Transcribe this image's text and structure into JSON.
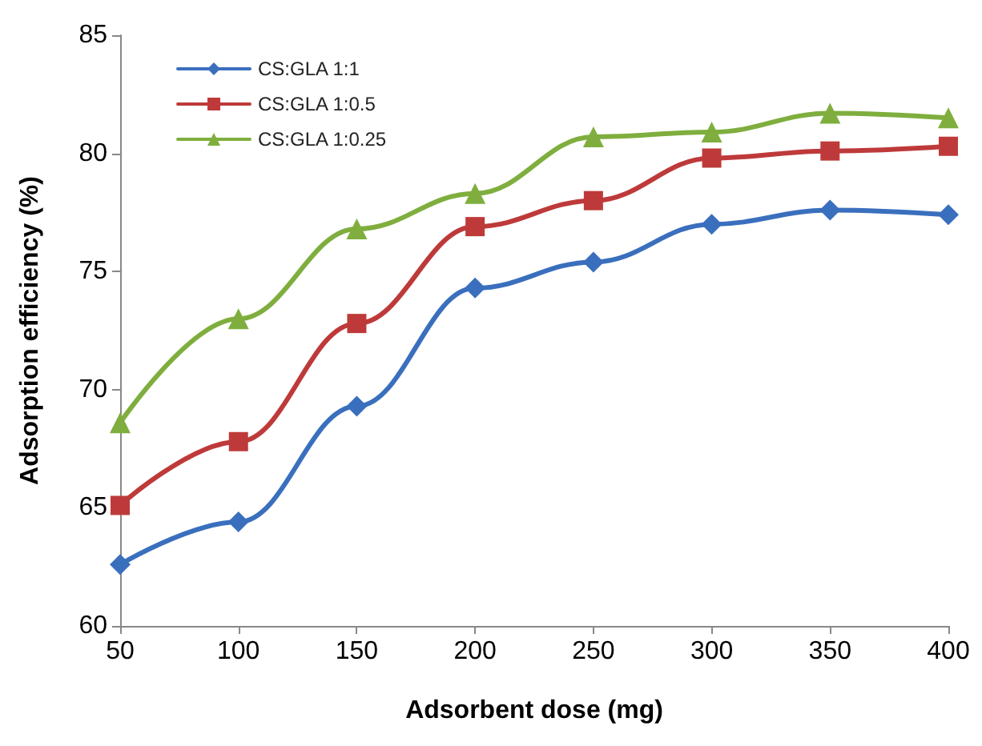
{
  "chart_data": {
    "type": "line",
    "xlabel": "Adsorbent dose (mg)",
    "ylabel": "Adsorption efficiency (%)",
    "x": [
      50,
      100,
      150,
      200,
      250,
      300,
      350,
      400
    ],
    "xlim": [
      50,
      400
    ],
    "xticks": [
      50,
      100,
      150,
      200,
      250,
      300,
      350,
      400
    ],
    "ylim": [
      60,
      85
    ],
    "yticks": [
      60,
      65,
      70,
      75,
      80,
      85
    ],
    "grid": false,
    "legend": "top left",
    "line_style": "solid",
    "series": [
      {
        "name": "CS:GLA 1:1",
        "color": "#3a6fbd",
        "marker": "diamond",
        "values": [
          62.6,
          64.4,
          69.3,
          74.3,
          75.4,
          77.0,
          77.6,
          77.4
        ]
      },
      {
        "name": "CS:GLA 1:0.5",
        "color": "#be3a3a",
        "marker": "square",
        "values": [
          65.1,
          67.8,
          72.8,
          76.9,
          78.0,
          79.8,
          80.1,
          80.3
        ]
      },
      {
        "name": "CS:GLA 1:0.25",
        "color": "#7fae3e",
        "marker": "triangle",
        "values": [
          68.6,
          73.0,
          76.8,
          78.3,
          80.7,
          80.9,
          81.7,
          81.5
        ]
      }
    ]
  }
}
